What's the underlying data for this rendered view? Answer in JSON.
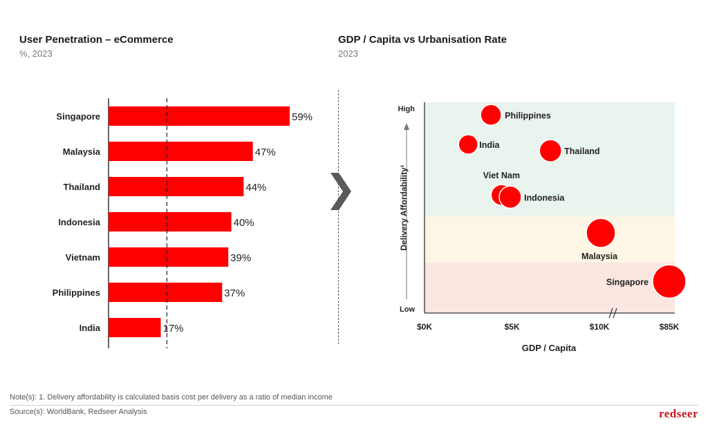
{
  "left_panel": {
    "title": "User Penetration – eCommerce",
    "subtitle": "%, 2023"
  },
  "right_panel": {
    "title": "GDP / Capita vs Urbanisation Rate",
    "subtitle": "2023"
  },
  "chevron_icon": "chevron-right-icon",
  "chart_data": [
    {
      "type": "bar",
      "orientation": "horizontal",
      "categories": [
        "Singapore",
        "Malaysia",
        "Thailand",
        "Indonesia",
        "Vietnam",
        "Philippines",
        "India"
      ],
      "values": [
        59,
        47,
        44,
        40,
        39,
        37,
        17
      ],
      "value_labels": [
        "59%",
        "47%",
        "44%",
        "40%",
        "39%",
        "37%",
        "17%"
      ],
      "value_unit": "%",
      "xlim": [
        0,
        59
      ],
      "reference_line": {
        "value": 19,
        "style": "dashed"
      },
      "bar_color": "#ff0000"
    },
    {
      "type": "scatter",
      "xlabel": "GDP / Capita",
      "ylabel": "Delivery Affordability¹",
      "x_ticks": [
        "$0K",
        "$5K",
        "$10K",
        "$85K"
      ],
      "y_ticks": [
        "High",
        "Low"
      ],
      "x_axis_break": "$10K–$85K",
      "background_bands": [
        {
          "name": "top",
          "color": "#eaf4ee"
        },
        {
          "name": "middle",
          "color": "#fdf6e4"
        },
        {
          "name": "bottom",
          "color": "#fbe6e2"
        }
      ],
      "point_color": "#ff0000",
      "points": [
        {
          "label": "Philippines",
          "x": 3.8,
          "y": 0.94
        },
        {
          "label": "India",
          "x": 2.5,
          "y": 0.8
        },
        {
          "label": "Thailand",
          "x": 7.2,
          "y": 0.77
        },
        {
          "label": "Viet Nam",
          "x": 4.4,
          "y": 0.56
        },
        {
          "label": "Indonesia",
          "x": 4.9,
          "y": 0.55
        },
        {
          "label": "Malaysia",
          "x": 11.5,
          "y": 0.38
        },
        {
          "label": "Singapore",
          "x": 85,
          "y": 0.15
        }
      ]
    }
  ],
  "footer": {
    "note": "Note(s): 1. Delivery affordability is calculated basis cost per delivery as a ratio of median income",
    "source": "Source(s): WorldBank, Redseer Analysis",
    "brand": "redseer"
  }
}
